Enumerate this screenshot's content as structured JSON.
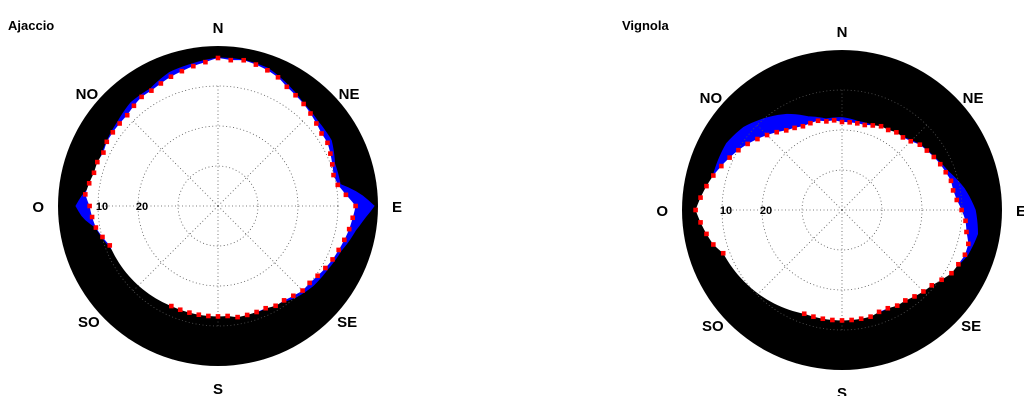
{
  "chart_data": [
    {
      "type": "polar",
      "title": "Ajaccio",
      "directions": [
        "N",
        "NE",
        "E",
        "SE",
        "S",
        "SO",
        "O",
        "NO"
      ],
      "radial_ticks": [
        "10",
        "20"
      ],
      "radial_lim": [
        0,
        40
      ],
      "radial_direction": "elevation (90 at centre, 0 at rim)",
      "grid": true,
      "series": [
        {
          "color": "#0000ff",
          "az": [
            0,
            10,
            20,
            30,
            40,
            50,
            60,
            70,
            80,
            85,
            90,
            95,
            100,
            110,
            120,
            130,
            140,
            150,
            160,
            170,
            180,
            200,
            220,
            240,
            260,
            265,
            270,
            275,
            280,
            290,
            300,
            310,
            320,
            330,
            340,
            350
          ],
          "values": [
            3.0,
            3.0,
            3.4,
            5.1,
            6.7,
            7.3,
            7.3,
            9.0,
            9.0,
            4.5,
            1.0,
            3.4,
            5.1,
            7.3,
            8.4,
            9.0,
            10.1,
            11.8,
            11.8,
            12.9,
            12.9,
            12.9,
            12.9,
            12.9,
            9.0,
            6.2,
            4.5,
            6.2,
            8.4,
            8.4,
            7.9,
            7.3,
            6.2,
            6.2,
            4.5,
            3.9
          ]
        },
        {
          "color": "#ff0000",
          "marker": "square",
          "az": [
            0,
            5,
            10,
            15,
            20,
            25,
            30,
            35,
            40,
            45,
            50,
            55,
            60,
            65,
            70,
            75,
            80,
            85,
            90,
            95,
            100,
            105,
            110,
            115,
            120,
            125,
            130,
            135,
            140,
            145,
            150,
            155,
            160,
            165,
            170,
            175,
            180,
            185,
            190,
            195,
            200,
            205,
            250,
            255,
            260,
            265,
            270,
            275,
            280,
            285,
            290,
            295,
            300,
            305,
            310,
            315,
            320,
            325,
            330,
            335,
            340,
            345,
            350,
            355
          ],
          "values": [
            3.0,
            3.4,
            3.0,
            3.4,
            3.9,
            4.5,
            5.6,
            6.2,
            6.7,
            7.3,
            7.9,
            8.4,
            8.4,
            9.0,
            9.6,
            10.1,
            9.6,
            7.9,
            5.6,
            6.2,
            6.7,
            7.3,
            7.9,
            8.4,
            9.0,
            9.6,
            10.1,
            10.1,
            10.7,
            11.2,
            11.2,
            11.8,
            11.8,
            11.8,
            11.8,
            12.4,
            12.4,
            12.4,
            12.4,
            12.4,
            12.4,
            12.4,
            11.2,
            10.1,
            9.0,
            8.4,
            7.9,
            6.7,
            7.3,
            7.9,
            7.9,
            8.4,
            7.9,
            7.9,
            7.9,
            7.9,
            7.3,
            6.7,
            6.7,
            6.2,
            5.6,
            5.1,
            4.5,
            3.9
          ]
        }
      ]
    },
    {
      "type": "polar",
      "title": "Vignola",
      "directions": [
        "N",
        "NE",
        "E",
        "SE",
        "S",
        "SO",
        "O",
        "NO"
      ],
      "radial_ticks": [
        "10",
        "20"
      ],
      "radial_lim": [
        0,
        40
      ],
      "radial_direction": "elevation (90 at centre, 0 at rim)",
      "grid": true,
      "series": [
        {
          "color": "#0000ff",
          "az": [
            0,
            10,
            20,
            30,
            40,
            50,
            60,
            70,
            80,
            90,
            100,
            110,
            120,
            130,
            140,
            150,
            160,
            170,
            180,
            190,
            200,
            210,
            220,
            230,
            240,
            250,
            260,
            270,
            280,
            290,
            300,
            310,
            315,
            320,
            330,
            340,
            350
          ],
          "values": [
            16.9,
            17.5,
            17.5,
            16.9,
            16.3,
            14.6,
            13.5,
            11.8,
            9.0,
            6.7,
            5.6,
            6.7,
            9.0,
            11.2,
            12.4,
            12.9,
            12.9,
            12.9,
            12.9,
            12.9,
            12.9,
            12.9,
            12.9,
            12.9,
            12.9,
            12.9,
            10.7,
            6.7,
            6.7,
            6.7,
            6.7,
            7.9,
            9.0,
            10.1,
            12.4,
            15.2,
            16.9
          ]
        },
        {
          "color": "#ff0000",
          "marker": "square",
          "az": [
            0,
            5,
            10,
            15,
            20,
            25,
            30,
            35,
            40,
            45,
            50,
            55,
            60,
            65,
            70,
            75,
            80,
            85,
            90,
            95,
            100,
            105,
            110,
            115,
            120,
            125,
            130,
            135,
            140,
            145,
            150,
            155,
            160,
            165,
            170,
            175,
            180,
            185,
            190,
            195,
            200,
            250,
            255,
            260,
            265,
            270,
            275,
            280,
            285,
            290,
            295,
            300,
            305,
            310,
            315,
            320,
            325,
            330,
            335,
            340,
            345,
            350,
            355
          ],
          "values": [
            18.0,
            18.0,
            18.0,
            18.0,
            17.5,
            16.9,
            16.9,
            16.3,
            16.3,
            15.7,
            14.6,
            14.1,
            13.5,
            12.9,
            12.4,
            11.8,
            11.8,
            11.2,
            10.1,
            9.0,
            8.4,
            7.3,
            7.3,
            7.9,
            8.4,
            9.6,
            10.7,
            11.2,
            11.8,
            12.4,
            12.4,
            12.9,
            12.9,
            12.4,
            12.4,
            12.4,
            12.4,
            12.4,
            12.4,
            12.4,
            12.4,
            8.4,
            6.7,
            5.6,
            4.5,
            3.4,
            4.5,
            5.6,
            6.7,
            7.9,
            9.0,
            10.1,
            11.2,
            12.4,
            13.5,
            14.6,
            15.7,
            16.3,
            16.9,
            16.9,
            16.9,
            17.5,
            17.5
          ]
        }
      ]
    }
  ]
}
